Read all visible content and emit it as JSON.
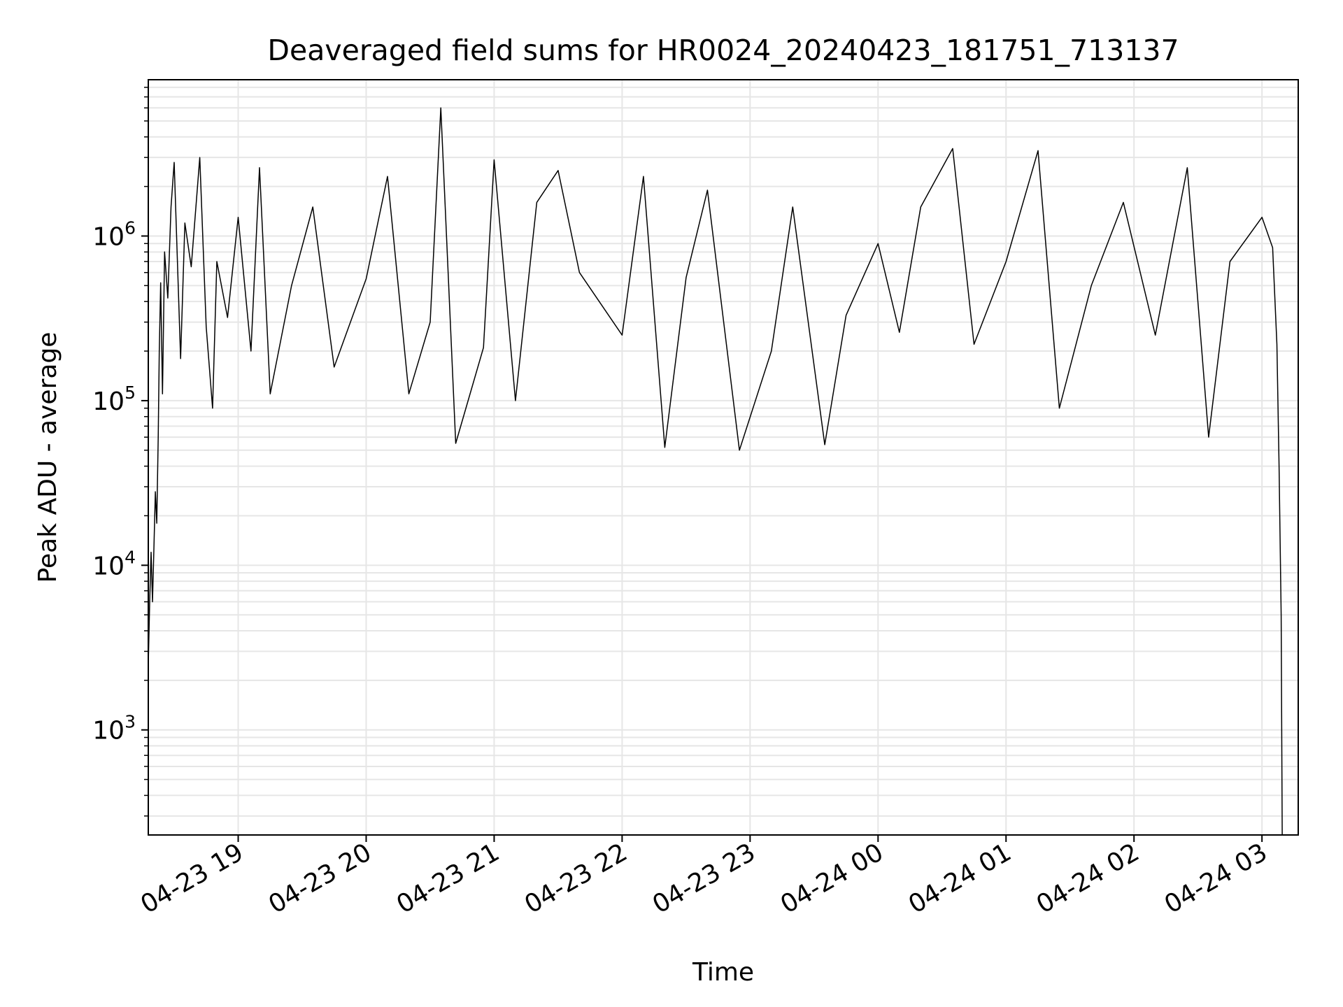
{
  "chart_data": {
    "type": "line",
    "title": "Deaveraged field sums for HR0024_20240423_181751_713137",
    "xlabel": "Time",
    "ylabel": "Peak ADU - average",
    "yscale": "log",
    "ylim": [
      230,
      8900000
    ],
    "xlim": [
      "2024-04-23 18:17:51",
      "2024-04-24 03:17:00"
    ],
    "grid": true,
    "line_color": "#000000",
    "grid_color": "#e6e6e6",
    "x_ticks": [
      {
        "t": "2024-04-23 19:00:00",
        "label": "04-23 19"
      },
      {
        "t": "2024-04-23 20:00:00",
        "label": "04-23 20"
      },
      {
        "t": "2024-04-23 21:00:00",
        "label": "04-23 21"
      },
      {
        "t": "2024-04-23 22:00:00",
        "label": "04-23 22"
      },
      {
        "t": "2024-04-23 23:00:00",
        "label": "04-23 23"
      },
      {
        "t": "2024-04-24 00:00:00",
        "label": "04-24 00"
      },
      {
        "t": "2024-04-24 01:00:00",
        "label": "04-24 01"
      },
      {
        "t": "2024-04-24 02:00:00",
        "label": "04-24 02"
      },
      {
        "t": "2024-04-24 03:00:00",
        "label": "04-24 03"
      }
    ],
    "y_ticks": [
      {
        "value": 1000,
        "base": "10",
        "exp": "3"
      },
      {
        "value": 10000,
        "base": "10",
        "exp": "4"
      },
      {
        "value": 100000,
        "base": "10",
        "exp": "5"
      },
      {
        "value": 1000000,
        "base": "10",
        "exp": "6"
      }
    ],
    "series": [
      {
        "points": [
          [
            "2024-04-23 18:17:51",
            2500
          ],
          [
            "2024-04-23 18:18:30",
            6000
          ],
          [
            "2024-04-23 18:19:10",
            12000
          ],
          [
            "2024-04-23 18:19:50",
            6000
          ],
          [
            "2024-04-23 18:20:30",
            13000
          ],
          [
            "2024-04-23 18:21:10",
            28000
          ],
          [
            "2024-04-23 18:21:50",
            18000
          ],
          [
            "2024-04-23 18:22:30",
            60000
          ],
          [
            "2024-04-23 18:23:00",
            200000
          ],
          [
            "2024-04-23 18:23:40",
            520000
          ],
          [
            "2024-04-23 18:24:30",
            110000
          ],
          [
            "2024-04-23 18:25:30",
            800000
          ],
          [
            "2024-04-23 18:27:00",
            420000
          ],
          [
            "2024-04-23 18:28:30",
            1500000
          ],
          [
            "2024-04-23 18:30:00",
            2800000
          ],
          [
            "2024-04-23 18:33:00",
            180000
          ],
          [
            "2024-04-23 18:35:00",
            1200000
          ],
          [
            "2024-04-23 18:38:00",
            650000
          ],
          [
            "2024-04-23 18:42:00",
            3000000
          ],
          [
            "2024-04-23 18:45:00",
            280000
          ],
          [
            "2024-04-23 18:48:00",
            90000
          ],
          [
            "2024-04-23 18:50:00",
            700000
          ],
          [
            "2024-04-23 18:55:00",
            320000
          ],
          [
            "2024-04-23 19:00:00",
            1300000
          ],
          [
            "2024-04-23 19:06:00",
            200000
          ],
          [
            "2024-04-23 19:10:00",
            2600000
          ],
          [
            "2024-04-23 19:15:00",
            110000
          ],
          [
            "2024-04-23 19:25:00",
            500000
          ],
          [
            "2024-04-23 19:35:00",
            1500000
          ],
          [
            "2024-04-23 19:45:00",
            160000
          ],
          [
            "2024-04-23 20:00:00",
            550000
          ],
          [
            "2024-04-23 20:10:00",
            2300000
          ],
          [
            "2024-04-23 20:20:00",
            110000
          ],
          [
            "2024-04-23 20:30:00",
            300000
          ],
          [
            "2024-04-23 20:35:00",
            6000000
          ],
          [
            "2024-04-23 20:42:00",
            55000
          ],
          [
            "2024-04-23 20:55:00",
            210000
          ],
          [
            "2024-04-23 21:00:00",
            2900000
          ],
          [
            "2024-04-23 21:10:00",
            100000
          ],
          [
            "2024-04-23 21:20:00",
            1600000
          ],
          [
            "2024-04-23 21:30:00",
            2500000
          ],
          [
            "2024-04-23 21:40:00",
            600000
          ],
          [
            "2024-04-23 22:00:00",
            250000
          ],
          [
            "2024-04-23 22:10:00",
            2300000
          ],
          [
            "2024-04-23 22:20:00",
            52000
          ],
          [
            "2024-04-23 22:30:00",
            560000
          ],
          [
            "2024-04-23 22:40:00",
            1900000
          ],
          [
            "2024-04-23 22:55:00",
            50000
          ],
          [
            "2024-04-23 23:10:00",
            200000
          ],
          [
            "2024-04-23 23:20:00",
            1500000
          ],
          [
            "2024-04-23 23:35:00",
            54000
          ],
          [
            "2024-04-23 23:45:00",
            330000
          ],
          [
            "2024-04-24 00:00:00",
            900000
          ],
          [
            "2024-04-24 00:10:00",
            260000
          ],
          [
            "2024-04-24 00:20:00",
            1500000
          ],
          [
            "2024-04-24 00:35:00",
            3400000
          ],
          [
            "2024-04-24 00:45:00",
            220000
          ],
          [
            "2024-04-24 01:00:00",
            700000
          ],
          [
            "2024-04-24 01:15:00",
            3300000
          ],
          [
            "2024-04-24 01:25:00",
            90000
          ],
          [
            "2024-04-24 01:40:00",
            500000
          ],
          [
            "2024-04-24 01:55:00",
            1600000
          ],
          [
            "2024-04-24 02:10:00",
            250000
          ],
          [
            "2024-04-24 02:25:00",
            2600000
          ],
          [
            "2024-04-24 02:35:00",
            60000
          ],
          [
            "2024-04-24 02:45:00",
            700000
          ],
          [
            "2024-04-24 03:00:00",
            1300000
          ],
          [
            "2024-04-24 03:05:00",
            850000
          ],
          [
            "2024-04-24 03:07:00",
            220000
          ],
          [
            "2024-04-24 03:08:00",
            40000
          ],
          [
            "2024-04-24 03:09:00",
            5000
          ],
          [
            "2024-04-24 03:09:30",
            230
          ]
        ]
      }
    ]
  }
}
